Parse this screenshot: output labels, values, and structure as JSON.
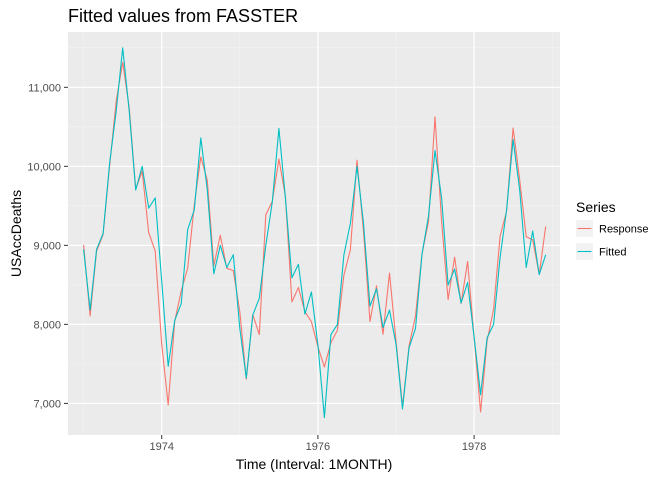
{
  "chart_data": {
    "type": "line",
    "title": "Fitted values from FASSTER",
    "xlabel": "Time (Interval: 1MONTH)",
    "ylabel": "USAccDeaths",
    "x_start": "1973-01",
    "x_frequency": "monthly",
    "x_ticks": [
      1974,
      1976,
      1978
    ],
    "xlim": [
      1972.8,
      1979.1
    ],
    "y_ticks": [
      7000,
      8000,
      9000,
      10000,
      11000
    ],
    "ylim": [
      6600,
      11700
    ],
    "grid": true,
    "legend": {
      "title": "Series",
      "position": "right"
    },
    "series": [
      {
        "name": "Response",
        "color": "#F8766D",
        "values": [
          9007,
          8106,
          8928,
          9137,
          10017,
          10826,
          11317,
          10744,
          9713,
          9938,
          9161,
          8927,
          7750,
          6981,
          8038,
          8422,
          8714,
          9512,
          10120,
          9823,
          8743,
          9129,
          8710,
          8680,
          8162,
          7306,
          8124,
          7870,
          9387,
          9556,
          10093,
          9620,
          8285,
          8466,
          8160,
          8034,
          7717,
          7461,
          7767,
          7925,
          8623,
          8945,
          10078,
          9179,
          8037,
          8488,
          7874,
          8647,
          7792,
          6957,
          7726,
          8106,
          8890,
          9299,
          10625,
          9302,
          8314,
          8850,
          8265,
          8796,
          7836,
          6892,
          7791,
          8192,
          9115,
          9434,
          10484,
          9827,
          9110,
          9070,
          8633,
          9240
        ]
      },
      {
        "name": "Fitted",
        "color": "#00BFC4",
        "values": [
          8950,
          8180,
          8950,
          9150,
          10050,
          10700,
          11500,
          10700,
          9700,
          10000,
          9470,
          9600,
          8550,
          7470,
          8050,
          8260,
          9200,
          9450,
          10360,
          9700,
          8640,
          9000,
          8720,
          8880,
          7950,
          7320,
          8120,
          8330,
          9000,
          9550,
          10480,
          9600,
          8590,
          8760,
          8130,
          8410,
          7740,
          6820,
          7870,
          8000,
          8880,
          9280,
          10000,
          9280,
          8230,
          8450,
          7960,
          8180,
          7750,
          6930,
          7700,
          7950,
          8890,
          9370,
          10200,
          9600,
          8500,
          8700,
          8270,
          8530,
          7840,
          7110,
          7830,
          8000,
          8850,
          9450,
          10340,
          9700,
          8720,
          9180,
          8630,
          8880
        ]
      }
    ]
  }
}
